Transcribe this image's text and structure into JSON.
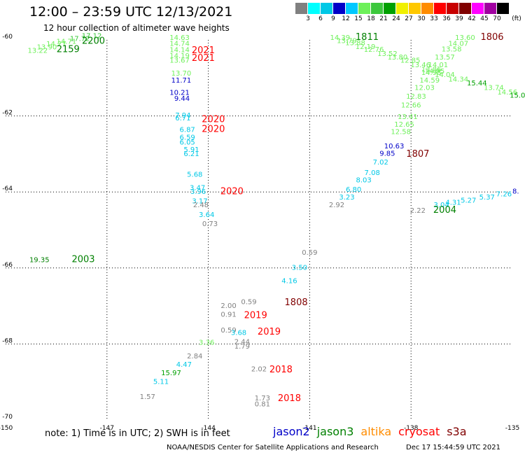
{
  "title": "12:00 – 23:59 UTC 12/13/2021",
  "subtitle": "12 hour collection of altimeter wave heights",
  "scale": {
    "labels": [
      "3",
      "6",
      "9",
      "12",
      "15",
      "18",
      "21",
      "24",
      "27",
      "30",
      "33",
      "36",
      "39",
      "42",
      "45",
      "70"
    ],
    "unit": "(ft)",
    "colors": [
      "#808080",
      "#00ffff",
      "#00c8e6",
      "#0000c8",
      "#00c8ff",
      "#6ef05a",
      "#3cc83c",
      "#00a000",
      "#f0f000",
      "#ffc800",
      "#ff8c00",
      "#ff0000",
      "#c80000",
      "#800000",
      "#ff00ff",
      "#a000a0",
      "#000000"
    ]
  },
  "footer": {
    "note": "note: 1) Time is in UTC; 2) SWH is in feet",
    "satellites": [
      {
        "name": "jason2",
        "color": "#0000c8"
      },
      {
        "name": "jason3",
        "color": "#008000"
      },
      {
        "name": "altika",
        "color": "#ff8c00"
      },
      {
        "name": "cryosat",
        "color": "#ff0000"
      },
      {
        "name": "s3a",
        "color": "#800000"
      }
    ],
    "credit": "NOAA/NESDIS Center for Satellite Applications and Research",
    "stamp": "Dec 17 15:44:59 UTC 2021"
  },
  "chart_data": {
    "type": "scatter",
    "xlim": [
      -150,
      -135
    ],
    "ylim": [
      -70,
      -60
    ],
    "xticks": [
      "-150",
      "-147",
      "-144",
      "-141",
      "-138",
      "-135"
    ],
    "yticks": [
      "-60",
      "-62",
      "-64",
      "-66",
      "-68",
      "-70"
    ],
    "grid": true,
    "points": [
      {
        "x": -149.05,
        "y": -60.34,
        "v": "13.22",
        "c": "#6ef05a"
      },
      {
        "x": -148.78,
        "y": -60.25,
        "v": "13.90",
        "c": "#6ef05a"
      },
      {
        "x": -148.5,
        "y": -60.17,
        "v": "14.27",
        "c": "#6ef05a"
      },
      {
        "x": -148.2,
        "y": -60.1,
        "v": "14.71",
        "c": "#6ef05a"
      },
      {
        "x": -147.8,
        "y": -60.03,
        "v": "17.72",
        "c": "#3cc83c"
      },
      {
        "x": -147.45,
        "y": -59.95,
        "v": "17.12",
        "c": "#3cc83c"
      },
      {
        "x": -144.85,
        "y": -60.0,
        "v": "14.63",
        "c": "#6ef05a"
      },
      {
        "x": -144.85,
        "y": -60.16,
        "v": "14.74",
        "c": "#6ef05a"
      },
      {
        "x": -144.85,
        "y": -60.32,
        "v": "14.14",
        "c": "#6ef05a"
      },
      {
        "x": -144.85,
        "y": -60.48,
        "v": "14.19",
        "c": "#6ef05a"
      },
      {
        "x": -144.85,
        "y": -60.6,
        "v": "13.67",
        "c": "#6ef05a"
      },
      {
        "x": -144.8,
        "y": -60.94,
        "v": "13.70",
        "c": "#6ef05a"
      },
      {
        "x": -144.8,
        "y": -61.12,
        "v": "11.71",
        "c": "#0000c8"
      },
      {
        "x": -144.85,
        "y": -61.45,
        "v": "10.21",
        "c": "#0000c8"
      },
      {
        "x": -144.78,
        "y": -61.6,
        "v": "9.44",
        "c": "#0000c8"
      },
      {
        "x": -144.75,
        "y": -62.04,
        "v": "7.94",
        "c": "#00c8e6"
      },
      {
        "x": -144.75,
        "y": -62.12,
        "v": "6.71",
        "c": "#00c8e6"
      },
      {
        "x": -144.62,
        "y": -62.42,
        "v": "6.87",
        "c": "#00c8e6"
      },
      {
        "x": -144.62,
        "y": -62.62,
        "v": "6.59",
        "c": "#00c8e6"
      },
      {
        "x": -144.62,
        "y": -62.75,
        "v": "6.05",
        "c": "#00c8e6"
      },
      {
        "x": -144.5,
        "y": -62.95,
        "v": "5.91",
        "c": "#00c8e6"
      },
      {
        "x": -144.5,
        "y": -63.06,
        "v": "6.21",
        "c": "#00c8e6"
      },
      {
        "x": -144.4,
        "y": -63.6,
        "v": "5.68",
        "c": "#00c8e6"
      },
      {
        "x": -144.32,
        "y": -63.95,
        "v": "3.47",
        "c": "#00c8e6"
      },
      {
        "x": -144.3,
        "y": -64.05,
        "v": "3.96",
        "c": "#00c8e6"
      },
      {
        "x": -144.25,
        "y": -64.3,
        "v": "3.17",
        "c": "#00c8e6"
      },
      {
        "x": -144.22,
        "y": -64.4,
        "v": "2.48",
        "c": "#808080"
      },
      {
        "x": -144.05,
        "y": -64.66,
        "v": "3.64",
        "c": "#00c8e6"
      },
      {
        "x": -143.95,
        "y": -64.9,
        "v": "0.73",
        "c": "#808080"
      },
      {
        "x": -149.0,
        "y": -65.85,
        "v": "19.35",
        "c": "#008000"
      },
      {
        "x": -141.0,
        "y": -65.65,
        "v": "0.59",
        "c": "#808080"
      },
      {
        "x": -141.3,
        "y": -66.05,
        "v": "3.50",
        "c": "#00c8e6"
      },
      {
        "x": -141.6,
        "y": -66.4,
        "v": "4.16",
        "c": "#00c8e6"
      },
      {
        "x": -142.8,
        "y": -66.95,
        "v": "0.59",
        "c": "#808080"
      },
      {
        "x": -143.4,
        "y": -67.05,
        "v": "2.00",
        "c": "#808080"
      },
      {
        "x": -143.4,
        "y": -67.28,
        "v": "0.91",
        "c": "#808080"
      },
      {
        "x": -143.4,
        "y": -67.7,
        "v": "0.59",
        "c": "#808080"
      },
      {
        "x": -143.1,
        "y": -67.76,
        "v": "3.68",
        "c": "#00c8e6"
      },
      {
        "x": -143.0,
        "y": -68.0,
        "v": "2.44",
        "c": "#808080"
      },
      {
        "x": -143.0,
        "y": -68.12,
        "v": "1.79",
        "c": "#808080"
      },
      {
        "x": -144.05,
        "y": -68.02,
        "v": "3.36",
        "c": "#6ef05a"
      },
      {
        "x": -144.4,
        "y": -68.38,
        "v": "2.84",
        "c": "#808080"
      },
      {
        "x": -144.72,
        "y": -68.6,
        "v": "4.47",
        "c": "#00c8e6"
      },
      {
        "x": -145.1,
        "y": -68.82,
        "v": "15.97",
        "c": "#00a000"
      },
      {
        "x": -145.4,
        "y": -69.05,
        "v": "5.11",
        "c": "#00c8e6"
      },
      {
        "x": -142.5,
        "y": -68.72,
        "v": "2.02",
        "c": "#808080"
      },
      {
        "x": -145.8,
        "y": -69.45,
        "v": "1.57",
        "c": "#808080"
      },
      {
        "x": -142.4,
        "y": -69.48,
        "v": "1.73",
        "c": "#808080"
      },
      {
        "x": -142.4,
        "y": -69.64,
        "v": "0.81",
        "c": "#808080"
      },
      {
        "x": -140.1,
        "y": -60.0,
        "v": "14.39",
        "c": "#6ef05a"
      },
      {
        "x": -139.9,
        "y": -60.08,
        "v": "13.79",
        "c": "#6ef05a"
      },
      {
        "x": -139.65,
        "y": -60.14,
        "v": "13.88",
        "c": "#6ef05a"
      },
      {
        "x": -139.35,
        "y": -60.24,
        "v": "12.19",
        "c": "#6ef05a"
      },
      {
        "x": -139.1,
        "y": -60.31,
        "v": "12.76",
        "c": "#6ef05a"
      },
      {
        "x": -138.7,
        "y": -60.42,
        "v": "13.52",
        "c": "#6ef05a"
      },
      {
        "x": -138.4,
        "y": -60.52,
        "v": "13.80",
        "c": "#6ef05a"
      },
      {
        "x": -138.02,
        "y": -60.6,
        "v": "12.85",
        "c": "#6ef05a"
      },
      {
        "x": -137.72,
        "y": -60.72,
        "v": "13.46",
        "c": "#6ef05a"
      },
      {
        "x": -137.4,
        "y": -60.84,
        "v": "13.86",
        "c": "#6ef05a"
      },
      {
        "x": -137.4,
        "y": -60.92,
        "v": "14.95",
        "c": "#6ef05a"
      },
      {
        "x": -137.0,
        "y": -60.98,
        "v": "14.04",
        "c": "#6ef05a"
      },
      {
        "x": -136.6,
        "y": -61.1,
        "v": "14.34",
        "c": "#6ef05a"
      },
      {
        "x": -136.05,
        "y": -61.2,
        "v": "15.44",
        "c": "#00a000"
      },
      {
        "x": -135.55,
        "y": -61.32,
        "v": "13.74",
        "c": "#6ef05a"
      },
      {
        "x": -135.15,
        "y": -61.44,
        "v": "14.56",
        "c": "#6ef05a"
      },
      {
        "x": -134.85,
        "y": -61.52,
        "v": "15.0",
        "c": "#00a000"
      },
      {
        "x": -136.4,
        "y": -60.0,
        "v": "13.60",
        "c": "#6ef05a"
      },
      {
        "x": -136.6,
        "y": -60.16,
        "v": "14.07",
        "c": "#6ef05a"
      },
      {
        "x": -136.8,
        "y": -60.3,
        "v": "13.58",
        "c": "#6ef05a"
      },
      {
        "x": -137.0,
        "y": -60.52,
        "v": "13.57",
        "c": "#6ef05a"
      },
      {
        "x": -137.2,
        "y": -60.72,
        "v": "14.01",
        "c": "#6ef05a"
      },
      {
        "x": -137.3,
        "y": -60.88,
        "v": "14.95",
        "c": "#6ef05a"
      },
      {
        "x": -137.45,
        "y": -61.12,
        "v": "14.59",
        "c": "#6ef05a"
      },
      {
        "x": -137.6,
        "y": -61.32,
        "v": "12.03",
        "c": "#6ef05a"
      },
      {
        "x": -137.85,
        "y": -61.55,
        "v": "12.83",
        "c": "#6ef05a"
      },
      {
        "x": -138.0,
        "y": -61.78,
        "v": "12.66",
        "c": "#6ef05a"
      },
      {
        "x": -138.1,
        "y": -62.08,
        "v": "13.41",
        "c": "#6ef05a"
      },
      {
        "x": -138.2,
        "y": -62.28,
        "v": "12.65",
        "c": "#6ef05a"
      },
      {
        "x": -138.3,
        "y": -62.48,
        "v": "12.58",
        "c": "#6ef05a"
      },
      {
        "x": -138.5,
        "y": -62.85,
        "v": "10.63",
        "c": "#0000c8"
      },
      {
        "x": -138.7,
        "y": -63.05,
        "v": "9.85",
        "c": "#0000c8"
      },
      {
        "x": -138.9,
        "y": -63.28,
        "v": "7.02",
        "c": "#00c8e6"
      },
      {
        "x": -139.15,
        "y": -63.55,
        "v": "7.08",
        "c": "#00c8e6"
      },
      {
        "x": -139.4,
        "y": -63.75,
        "v": "8.03",
        "c": "#00c8e6"
      },
      {
        "x": -139.7,
        "y": -64.0,
        "v": "6.80",
        "c": "#00c8e6"
      },
      {
        "x": -139.9,
        "y": -64.2,
        "v": "3.23",
        "c": "#00c8e6"
      },
      {
        "x": -140.2,
        "y": -64.4,
        "v": "2.92",
        "c": "#808080"
      },
      {
        "x": -137.8,
        "y": -64.55,
        "v": "2.22",
        "c": "#808080"
      },
      {
        "x": -137.1,
        "y": -64.4,
        "v": "3.04",
        "c": "#00c8e6"
      },
      {
        "x": -136.75,
        "y": -64.34,
        "v": "4.31",
        "c": "#00c8e6"
      },
      {
        "x": -136.3,
        "y": -64.28,
        "v": "5.27",
        "c": "#00c8e6"
      },
      {
        "x": -135.75,
        "y": -64.2,
        "v": "5.37",
        "c": "#00c8e6"
      },
      {
        "x": -135.25,
        "y": -64.12,
        "v": "7.26",
        "c": "#00c8e6"
      },
      {
        "x": -134.9,
        "y": -64.04,
        "v": "8.",
        "c": "#0000c8"
      }
    ],
    "annotations": [
      {
        "x": -147.4,
        "y": -60.1,
        "t": "2200",
        "c": "#008000"
      },
      {
        "x": -148.15,
        "y": -60.32,
        "t": "2159",
        "c": "#008000"
      },
      {
        "x": -144.15,
        "y": -60.35,
        "t": "2021",
        "c": "#ff0000"
      },
      {
        "x": -144.15,
        "y": -60.55,
        "t": "2021",
        "c": "#ff0000"
      },
      {
        "x": -143.85,
        "y": -62.16,
        "t": "2020",
        "c": "#ff0000"
      },
      {
        "x": -143.85,
        "y": -62.42,
        "t": "2020",
        "c": "#ff0000"
      },
      {
        "x": -143.3,
        "y": -64.06,
        "t": "2020",
        "c": "#ff0000"
      },
      {
        "x": -147.7,
        "y": -65.85,
        "t": "2003",
        "c": "#008000"
      },
      {
        "x": -141.4,
        "y": -66.98,
        "t": "1808",
        "c": "#800000"
      },
      {
        "x": -142.6,
        "y": -67.32,
        "t": "2019",
        "c": "#ff0000"
      },
      {
        "x": -142.2,
        "y": -67.75,
        "t": "2019",
        "c": "#ff0000"
      },
      {
        "x": -141.85,
        "y": -68.75,
        "t": "2018",
        "c": "#ff0000"
      },
      {
        "x": -141.6,
        "y": -69.5,
        "t": "2018",
        "c": "#ff0000"
      },
      {
        "x": -139.3,
        "y": -60.0,
        "t": "1811",
        "c": "#008000"
      },
      {
        "x": -135.6,
        "y": -60.0,
        "t": "1806",
        "c": "#800000"
      },
      {
        "x": -137.8,
        "y": -63.08,
        "t": "1807",
        "c": "#800000"
      },
      {
        "x": -137.0,
        "y": -64.55,
        "t": "2004",
        "c": "#008000"
      }
    ]
  }
}
